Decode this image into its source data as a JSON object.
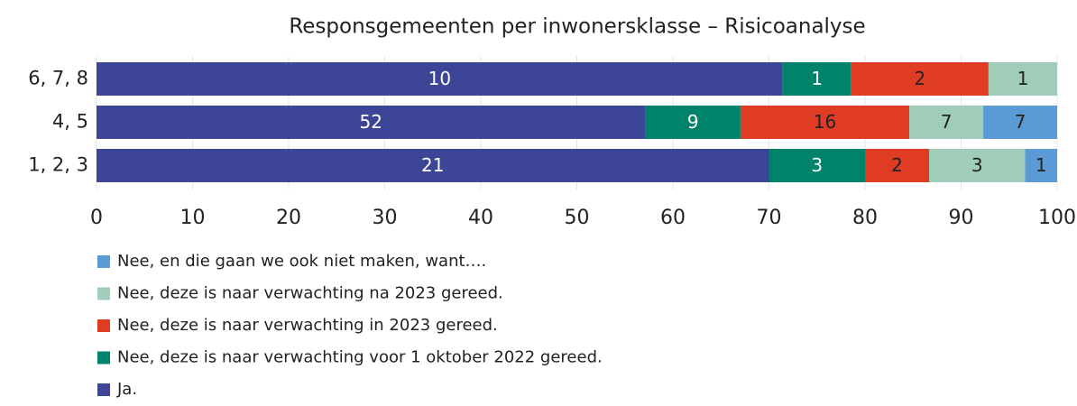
{
  "chart_data": {
    "type": "bar",
    "orientation": "horizontal",
    "stacked": "percent",
    "title": "Responsgemeenten per inwonersklasse – Risicoanalyse",
    "categories": [
      "6, 7, 8",
      "4, 5",
      "1, 2, 3"
    ],
    "series": [
      {
        "name": "Ja.",
        "color": "#3d4696",
        "label_color": "#ffffff",
        "values": [
          10,
          52,
          21
        ]
      },
      {
        "name": "Nee, deze is naar verwachting voor 1 oktober 2022 gereed.",
        "color": "#00836b",
        "label_color": "#ffffff",
        "values": [
          1,
          9,
          3
        ]
      },
      {
        "name": "Nee, deze is naar verwachting in 2023 gereed.",
        "color": "#e03c24",
        "label_color": "#222222",
        "values": [
          2,
          16,
          2
        ]
      },
      {
        "name": "Nee, deze is naar verwachting na 2023 gereed.",
        "color": "#9fcdb8",
        "label_color": "#222222",
        "values": [
          1,
          7,
          3
        ]
      },
      {
        "name": "Nee, en die gaan we ook niet maken, want….",
        "color": "#5b9bd5",
        "label_color": "#222222",
        "values": [
          null,
          7,
          1
        ]
      }
    ],
    "xlim": [
      0,
      100
    ],
    "xticks": [
      0,
      10,
      20,
      30,
      40,
      50,
      60,
      70,
      80,
      90,
      100
    ],
    "grid": true
  }
}
